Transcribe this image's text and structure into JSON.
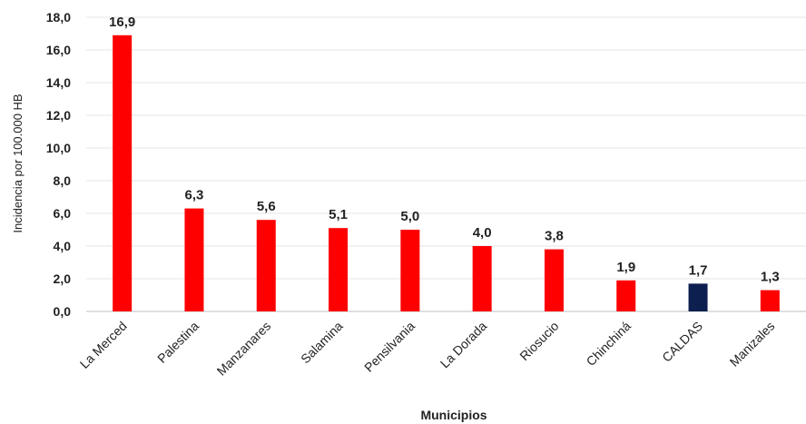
{
  "chart_data": {
    "type": "bar",
    "title": "",
    "xlabel": "Municipios",
    "ylabel": "Incidencia por 100.000 HB",
    "ylim": [
      0,
      18
    ],
    "yticks": [
      "0,0",
      "2,0",
      "4,0",
      "6,0",
      "8,0",
      "10,0",
      "12,0",
      "14,0",
      "16,0",
      "18,0"
    ],
    "categories": [
      "La Merced",
      "Palestina",
      "Manzanares",
      "Salamina",
      "Pensilvania",
      "La Dorada",
      "Riosucio",
      "Chinchiná",
      "CALDAS",
      "Manizales"
    ],
    "values": [
      16.9,
      6.3,
      5.6,
      5.1,
      5.0,
      4.0,
      3.8,
      1.9,
      1.7,
      1.3
    ],
    "value_labels": [
      "16,9",
      "6,3",
      "5,6",
      "5,1",
      "5,0",
      "4,0",
      "3,8",
      "1,9",
      "1,7",
      "1,3"
    ],
    "bar_colors": [
      "#ff0000",
      "#ff0000",
      "#ff0000",
      "#ff0000",
      "#ff0000",
      "#ff0000",
      "#ff0000",
      "#ff0000",
      "#0d1f4f",
      "#ff0000"
    ],
    "grid": true,
    "legend": "none"
  }
}
